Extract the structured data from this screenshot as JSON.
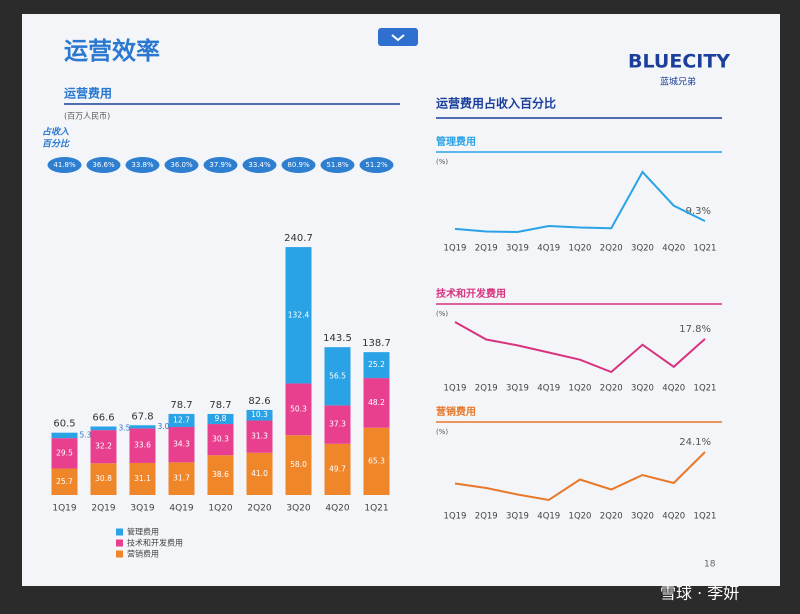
{
  "header": {
    "title": "运营效率",
    "logo": "BLUECITY",
    "logo_sub": "蓝城兄弟",
    "section_title": "运营费用占收入百分比",
    "page": "18",
    "watermark": "雪球 · 李妍"
  },
  "chart_data": [
    {
      "type": "bar",
      "stacked": true,
      "title": "运营费用",
      "subtitle": "(百万人民币)",
      "pct_title": [
        "占收入",
        "百分比"
      ],
      "pct_labels": [
        "41.8%",
        "36.6%",
        "33.8%",
        "36.0%",
        "37.9%",
        "33.4%",
        "80.9%",
        "51.8%",
        "51.2%"
      ],
      "categories": [
        "1Q19",
        "2Q19",
        "3Q19",
        "4Q19",
        "1Q20",
        "2Q20",
        "3Q20",
        "4Q20",
        "1Q21"
      ],
      "series": [
        {
          "name": "营销费用",
          "color": "#f0862a",
          "values": [
            25.7,
            30.8,
            31.1,
            31.7,
            38.6,
            41.0,
            58.0,
            49.7,
            65.3
          ],
          "value_labels": [
            "25.7",
            "30.8",
            "31.1",
            "31.7",
            "38.6",
            "41.0",
            "58.0",
            "49.7",
            "65.3"
          ]
        },
        {
          "name": "技术和开发费用",
          "color": "#e8408f",
          "values": [
            29.5,
            32.2,
            33.6,
            34.3,
            30.3,
            31.3,
            50.3,
            37.3,
            48.2
          ],
          "value_labels": [
            "29.5",
            "32.2",
            "33.6",
            "34.3",
            "30.3",
            "31.3",
            "50.3",
            "37.3",
            "48.2"
          ]
        },
        {
          "name": "管理费用",
          "color": "#2aa3e6",
          "values": [
            5.3,
            3.5,
            3.0,
            12.7,
            9.8,
            10.3,
            132.4,
            56.5,
            25.2
          ],
          "value_labels": [
            "5.3",
            "3.5",
            "3.0",
            "12.7",
            "9.8",
            "10.3",
            "132.4",
            "56.5",
            "25.2"
          ]
        }
      ],
      "totals": [
        60.5,
        66.6,
        67.8,
        78.7,
        78.7,
        82.6,
        240.7,
        143.5,
        138.7
      ]
    },
    {
      "type": "line",
      "title": "管理费用",
      "unit": "(%)",
      "color": "#2aa3e6",
      "categories": [
        "1Q19",
        "2Q19",
        "3Q19",
        "4Q19",
        "1Q20",
        "2Q20",
        "3Q20",
        "4Q20",
        "1Q21"
      ],
      "values": [
        3.7,
        1.9,
        1.5,
        5.8,
        4.7,
        4.2,
        44.5,
        20.4,
        9.3
      ],
      "value_labels": [
        null,
        null,
        null,
        null,
        null,
        null,
        null,
        null,
        "9.3%"
      ]
    },
    {
      "type": "line",
      "title": "技术和开发费用",
      "unit": "(%)",
      "color": "#d8337f",
      "categories": [
        "1Q19",
        "2Q19",
        "3Q19",
        "4Q19",
        "1Q20",
        "2Q20",
        "3Q20",
        "4Q20",
        "1Q21"
      ],
      "values": [
        20.4,
        17.7,
        16.8,
        15.7,
        14.6,
        12.7,
        16.9,
        13.5,
        17.8
      ],
      "value_labels": [
        null,
        null,
        null,
        null,
        null,
        null,
        null,
        null,
        "17.8%"
      ]
    },
    {
      "type": "line",
      "title": "营销费用",
      "unit": "(%)",
      "color": "#e8782a",
      "categories": [
        "1Q19",
        "2Q19",
        "3Q19",
        "4Q19",
        "1Q20",
        "2Q20",
        "3Q20",
        "4Q20",
        "1Q21"
      ],
      "values": [
        17.8,
        16.9,
        15.6,
        14.5,
        18.6,
        16.6,
        19.5,
        17.9,
        24.1
      ],
      "value_labels": [
        null,
        null,
        null,
        null,
        null,
        null,
        null,
        null,
        "24.1%"
      ]
    }
  ]
}
